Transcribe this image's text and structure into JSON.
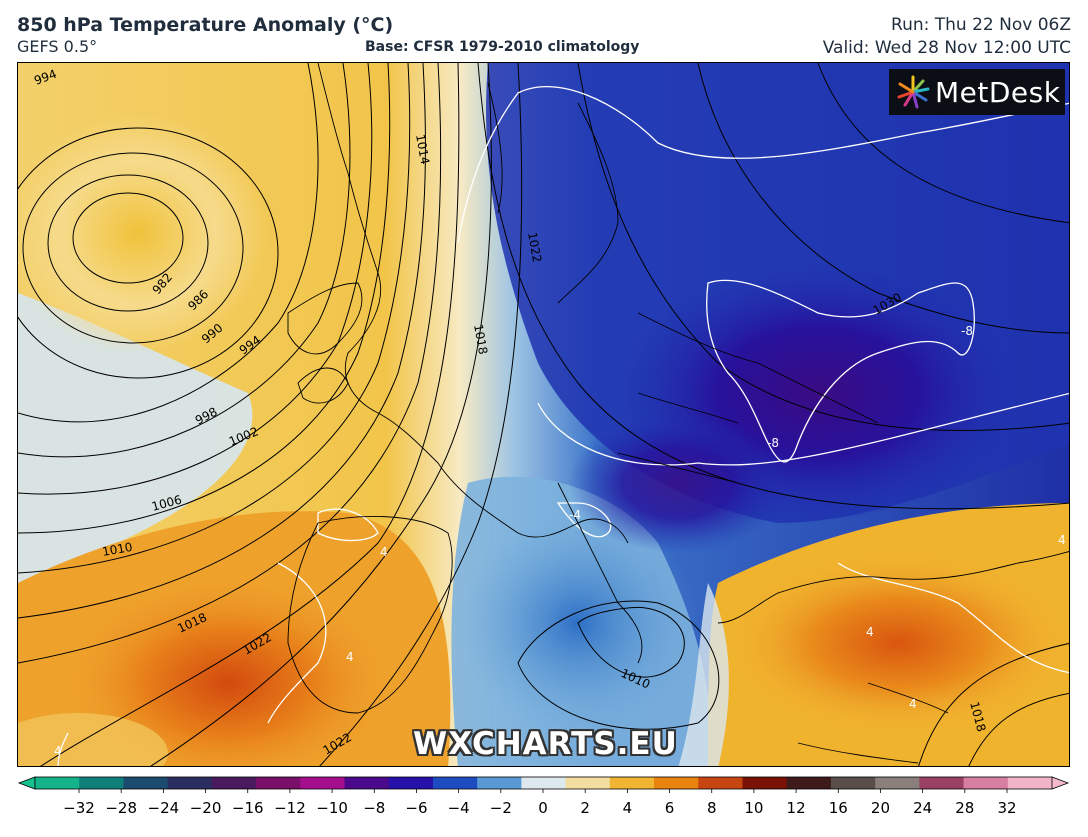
{
  "header": {
    "title": "850 hPa Temperature Anomaly (°C)",
    "subtitle": "GEFS 0.5°",
    "base": "Base: CFSR 1979-2010 climatology",
    "run": "Run: Thu 22 Nov 06Z",
    "valid": "Valid: Wed 28 Nov 12:00 UTC"
  },
  "logo": {
    "text": "MetDesk",
    "icon": "metdesk-starburst-icon"
  },
  "watermark": "WXCHARTS.EU",
  "isobar_labels": [
    {
      "text": "994"
    },
    {
      "text": "982"
    },
    {
      "text": "986"
    },
    {
      "text": "990"
    },
    {
      "text": "994"
    },
    {
      "text": "998"
    },
    {
      "text": "1002"
    },
    {
      "text": "1006"
    },
    {
      "text": "1010"
    },
    {
      "text": "1018"
    },
    {
      "text": "1022"
    },
    {
      "text": "1022"
    },
    {
      "text": "1014"
    },
    {
      "text": "1018"
    },
    {
      "text": "1022"
    },
    {
      "text": "1030"
    },
    {
      "text": "1010"
    },
    {
      "text": "1018"
    }
  ],
  "anomaly_labels": [
    {
      "text": "-8"
    },
    {
      "text": "-8"
    },
    {
      "text": "-4"
    },
    {
      "text": "4"
    },
    {
      "text": "4"
    },
    {
      "text": "4"
    },
    {
      "text": "4"
    },
    {
      "text": "4"
    },
    {
      "text": "4"
    }
  ],
  "colorbar": {
    "ticks": [
      "−32",
      "−28",
      "−24",
      "−20",
      "−16",
      "−12",
      "−10",
      "−8",
      "−6",
      "−4",
      "−2",
      "0",
      "2",
      "4",
      "6",
      "8",
      "10",
      "12",
      "16",
      "20",
      "24",
      "28",
      "32"
    ],
    "colors": [
      "#15b38a",
      "#0f7f7a",
      "#1b4b6e",
      "#2a2d60",
      "#4a1a5e",
      "#7a0f6a",
      "#a50f8e",
      "#4b0a8c",
      "#2612a8",
      "#1e4cc0",
      "#5a9ad4",
      "#dde8ef",
      "#f3dea0",
      "#f0b532",
      "#e8840f",
      "#c74510",
      "#7a1208",
      "#3e1a1a",
      "#5a4e4a",
      "#8a7f7a",
      "#9a4062",
      "#d67fa0",
      "#f2b4c8"
    ],
    "left_arrow_color": "#15c28f",
    "right_arrow_color": "#f5b9cc"
  }
}
